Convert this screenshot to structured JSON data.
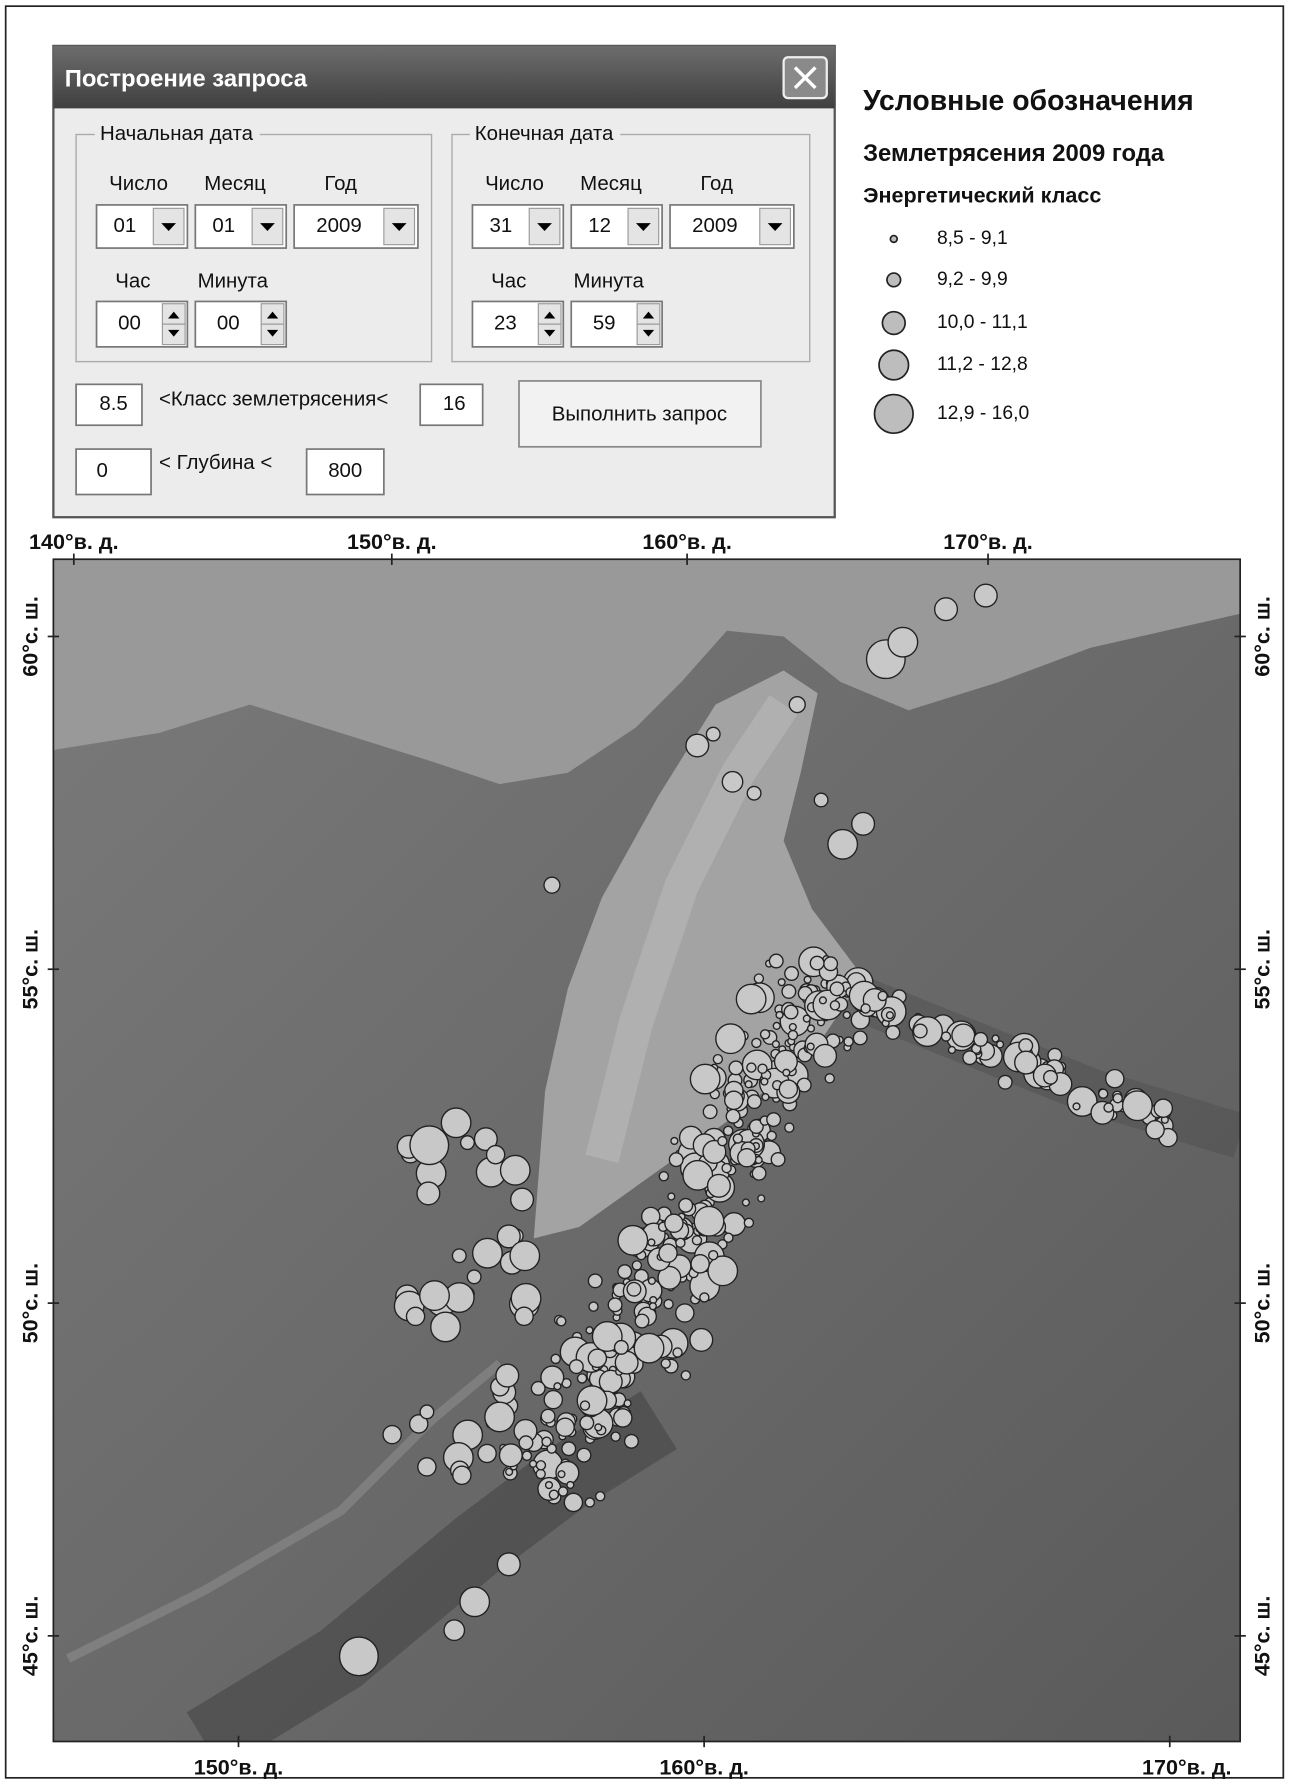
{
  "dialog": {
    "title": "Построение запроса",
    "start": {
      "legend": "Начальная дата",
      "day_label": "Число",
      "month_label": "Месяц",
      "year_label": "Год",
      "day": "01",
      "month": "01",
      "year": "2009",
      "hour_label": "Час",
      "minute_label": "Минута",
      "hour": "00",
      "minute": "00"
    },
    "end": {
      "legend": "Конечная дата",
      "day_label": "Число",
      "month_label": "Месяц",
      "year_label": "Год",
      "day": "31",
      "month": "12",
      "year": "2009",
      "hour_label": "Час",
      "minute_label": "Минута",
      "hour": "23",
      "minute": "59"
    },
    "class_min": "8.5",
    "class_label": "<Класс землетрясения<",
    "class_max": "16",
    "depth_min": "0",
    "depth_label": "< Глубина <",
    "depth_max": "800",
    "button": "Выполнить запрос"
  },
  "legend": {
    "title": "Условные обозначения",
    "subtitle": "Землетрясения 2009 года",
    "heading": "Энергетический класс",
    "items": [
      "8,5 - 9,1",
      "9,2 - 9,9",
      "10,0 - 11,1",
      "11,2 - 12,8",
      "12,9 - 16,0"
    ]
  },
  "map": {
    "top_labels": [
      "140°в. д.",
      "150°в. д.",
      "160°в. д.",
      "170°в. д."
    ],
    "bottom_labels": [
      "150°в. д.",
      "160°в. д.",
      "170°в. д."
    ],
    "left_labels": [
      "60°с. ш.",
      "55°с. ш.",
      "50°с. ш.",
      "45°с. ш."
    ],
    "right_labels": [
      "60°с. ш.",
      "55°с. ш.",
      "50°с. ш.",
      "45°с. ш."
    ]
  }
}
